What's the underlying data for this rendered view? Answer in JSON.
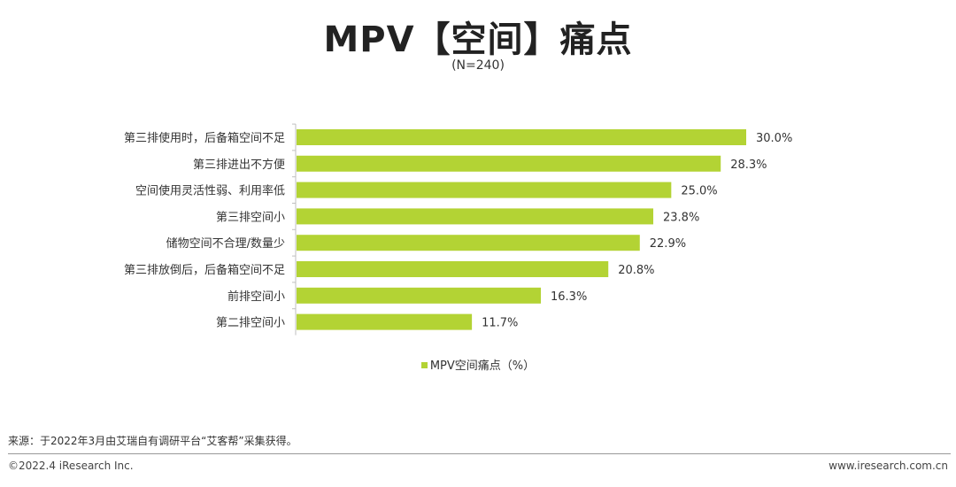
{
  "header": {
    "title": "MPV【空间】痛点",
    "subtitle": "(N=240)"
  },
  "chart_data": {
    "type": "bar",
    "orientation": "horizontal",
    "title": "MPV【空间】痛点",
    "subtitle": "(N=240)",
    "categories": [
      "第三排使用时，后备箱空间不足",
      "第三排进出不方便",
      "空间使用灵活性弱、利用率低",
      "第三排空间小",
      "储物空间不合理/数量少",
      "第三排放倒后，后备箱空间不足",
      "前排空间小",
      "第二排空间小"
    ],
    "series": [
      {
        "name": "MPV空间痛点（%）",
        "values": [
          30.0,
          28.3,
          25.0,
          23.8,
          22.9,
          20.8,
          16.3,
          11.7
        ],
        "labels": [
          "30.0%",
          "28.3%",
          "25.0%",
          "23.8%",
          "22.9%",
          "20.8%",
          "16.3%",
          "11.7%"
        ]
      }
    ],
    "xlim": [
      0,
      30.0
    ],
    "xlabel": "",
    "ylabel": "",
    "grid": false,
    "legend": "bottom-center",
    "bar_color": "#b3d334"
  },
  "legend": {
    "label": "MPV空间痛点（%）"
  },
  "footer": {
    "source": "来源：于2022年3月由艾瑞自有调研平台“艾客帮”采集获得。",
    "copyright": "©2022.4 iResearch Inc.",
    "website": "www.iresearch.com.cn"
  }
}
